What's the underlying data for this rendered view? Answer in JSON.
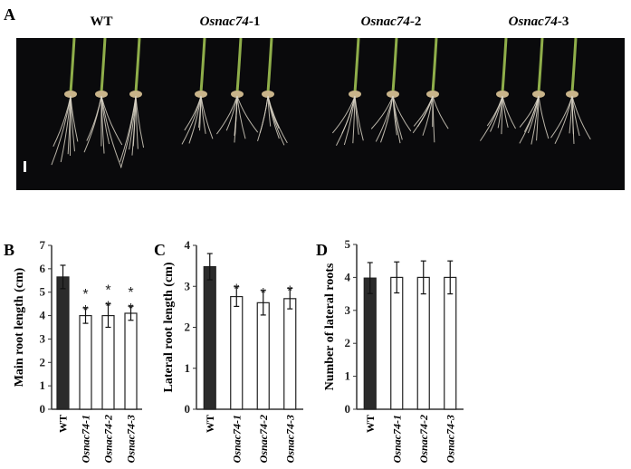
{
  "panel_letters": {
    "a": "A",
    "b": "B",
    "c": "C",
    "d": "D"
  },
  "photo": {
    "genotype_labels": [
      {
        "italic": "",
        "plain": "WT"
      },
      {
        "italic": "Osnac74",
        "plain": "-1"
      },
      {
        "italic": "Osnac74",
        "plain": "-2"
      },
      {
        "italic": "Osnac74",
        "plain": "-3"
      }
    ]
  },
  "colors": {
    "wt_bar": "#2b2b2b",
    "mutant_bar": "#ffffff",
    "photo_bg": "#0a0a0c",
    "shoot": "#8fae4a",
    "root": "#d8d2c4"
  },
  "chart_data": [
    {
      "type": "bar",
      "panel": "B",
      "categories": [
        "WT",
        "Osnac74-1",
        "Osnac74-2",
        "Osnac74-3"
      ],
      "values": [
        5.65,
        4.0,
        4.0,
        4.1
      ],
      "errors": [
        0.5,
        0.33,
        0.5,
        0.3
      ],
      "significance": [
        "",
        "**",
        "**",
        "**"
      ],
      "ylabel": "Main root length (cm)",
      "xlabel": "",
      "ylim": [
        0,
        7
      ],
      "yticks": [
        0,
        1,
        2,
        3,
        4,
        5,
        6,
        7
      ],
      "grid": false
    },
    {
      "type": "bar",
      "panel": "C",
      "categories": [
        "WT",
        "Osnac74-1",
        "Osnac74-2",
        "Osnac74-3"
      ],
      "values": [
        3.48,
        2.75,
        2.6,
        2.7
      ],
      "errors": [
        0.32,
        0.24,
        0.3,
        0.25
      ],
      "significance": [
        "",
        "*",
        "*",
        "*"
      ],
      "ylabel": "Lateral root length (cm)",
      "xlabel": "",
      "ylim": [
        0,
        4
      ],
      "yticks": [
        0,
        1,
        2,
        3,
        4
      ],
      "grid": false
    },
    {
      "type": "bar",
      "panel": "D",
      "categories": [
        "WT",
        "Osnac74-1",
        "Osnac74-2",
        "Osnac74-3"
      ],
      "values": [
        3.98,
        4.0,
        4.0,
        4.0
      ],
      "errors": [
        0.47,
        0.47,
        0.5,
        0.5
      ],
      "significance": [
        "",
        "",
        "",
        ""
      ],
      "ylabel": "Number of lateral roots",
      "xlabel": "",
      "ylim": [
        0,
        5
      ],
      "yticks": [
        0,
        1,
        2,
        3,
        4,
        5
      ],
      "grid": false
    }
  ]
}
